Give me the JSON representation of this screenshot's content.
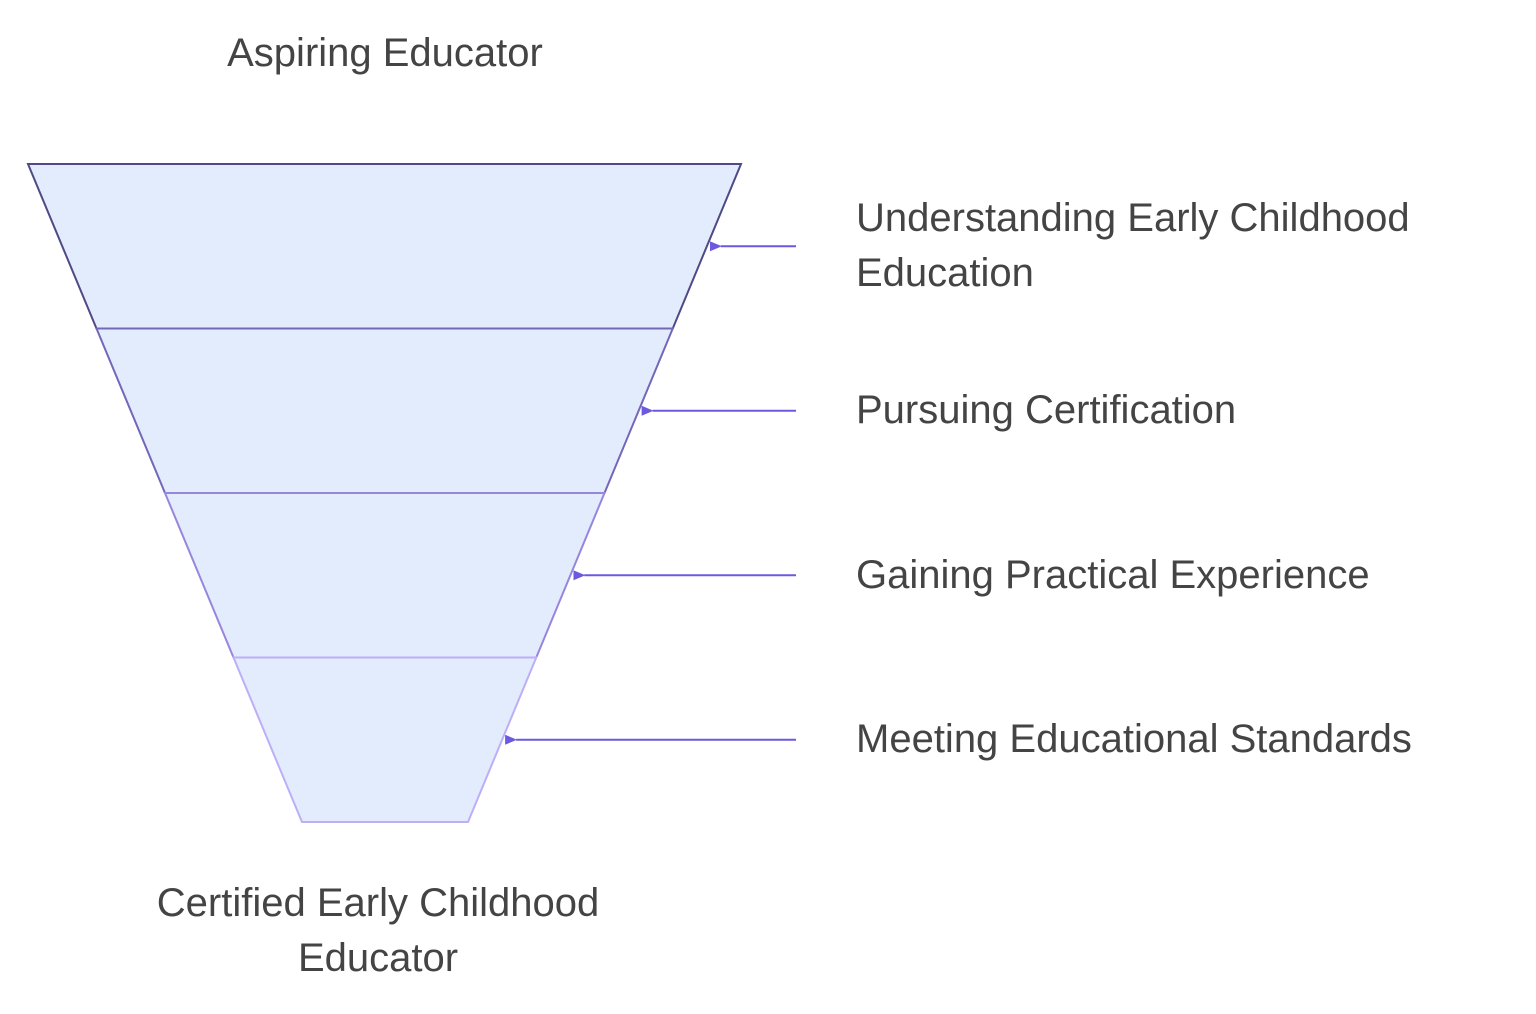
{
  "top_label": "Aspiring Educator",
  "bottom_label": "Certified Early Childhood Educator",
  "stages": [
    {
      "label": "Understanding Early Childhood Education"
    },
    {
      "label": "Pursuing Certification"
    },
    {
      "label": "Gaining Practical Experience"
    },
    {
      "label": "Meeting Educational Standards"
    }
  ]
}
